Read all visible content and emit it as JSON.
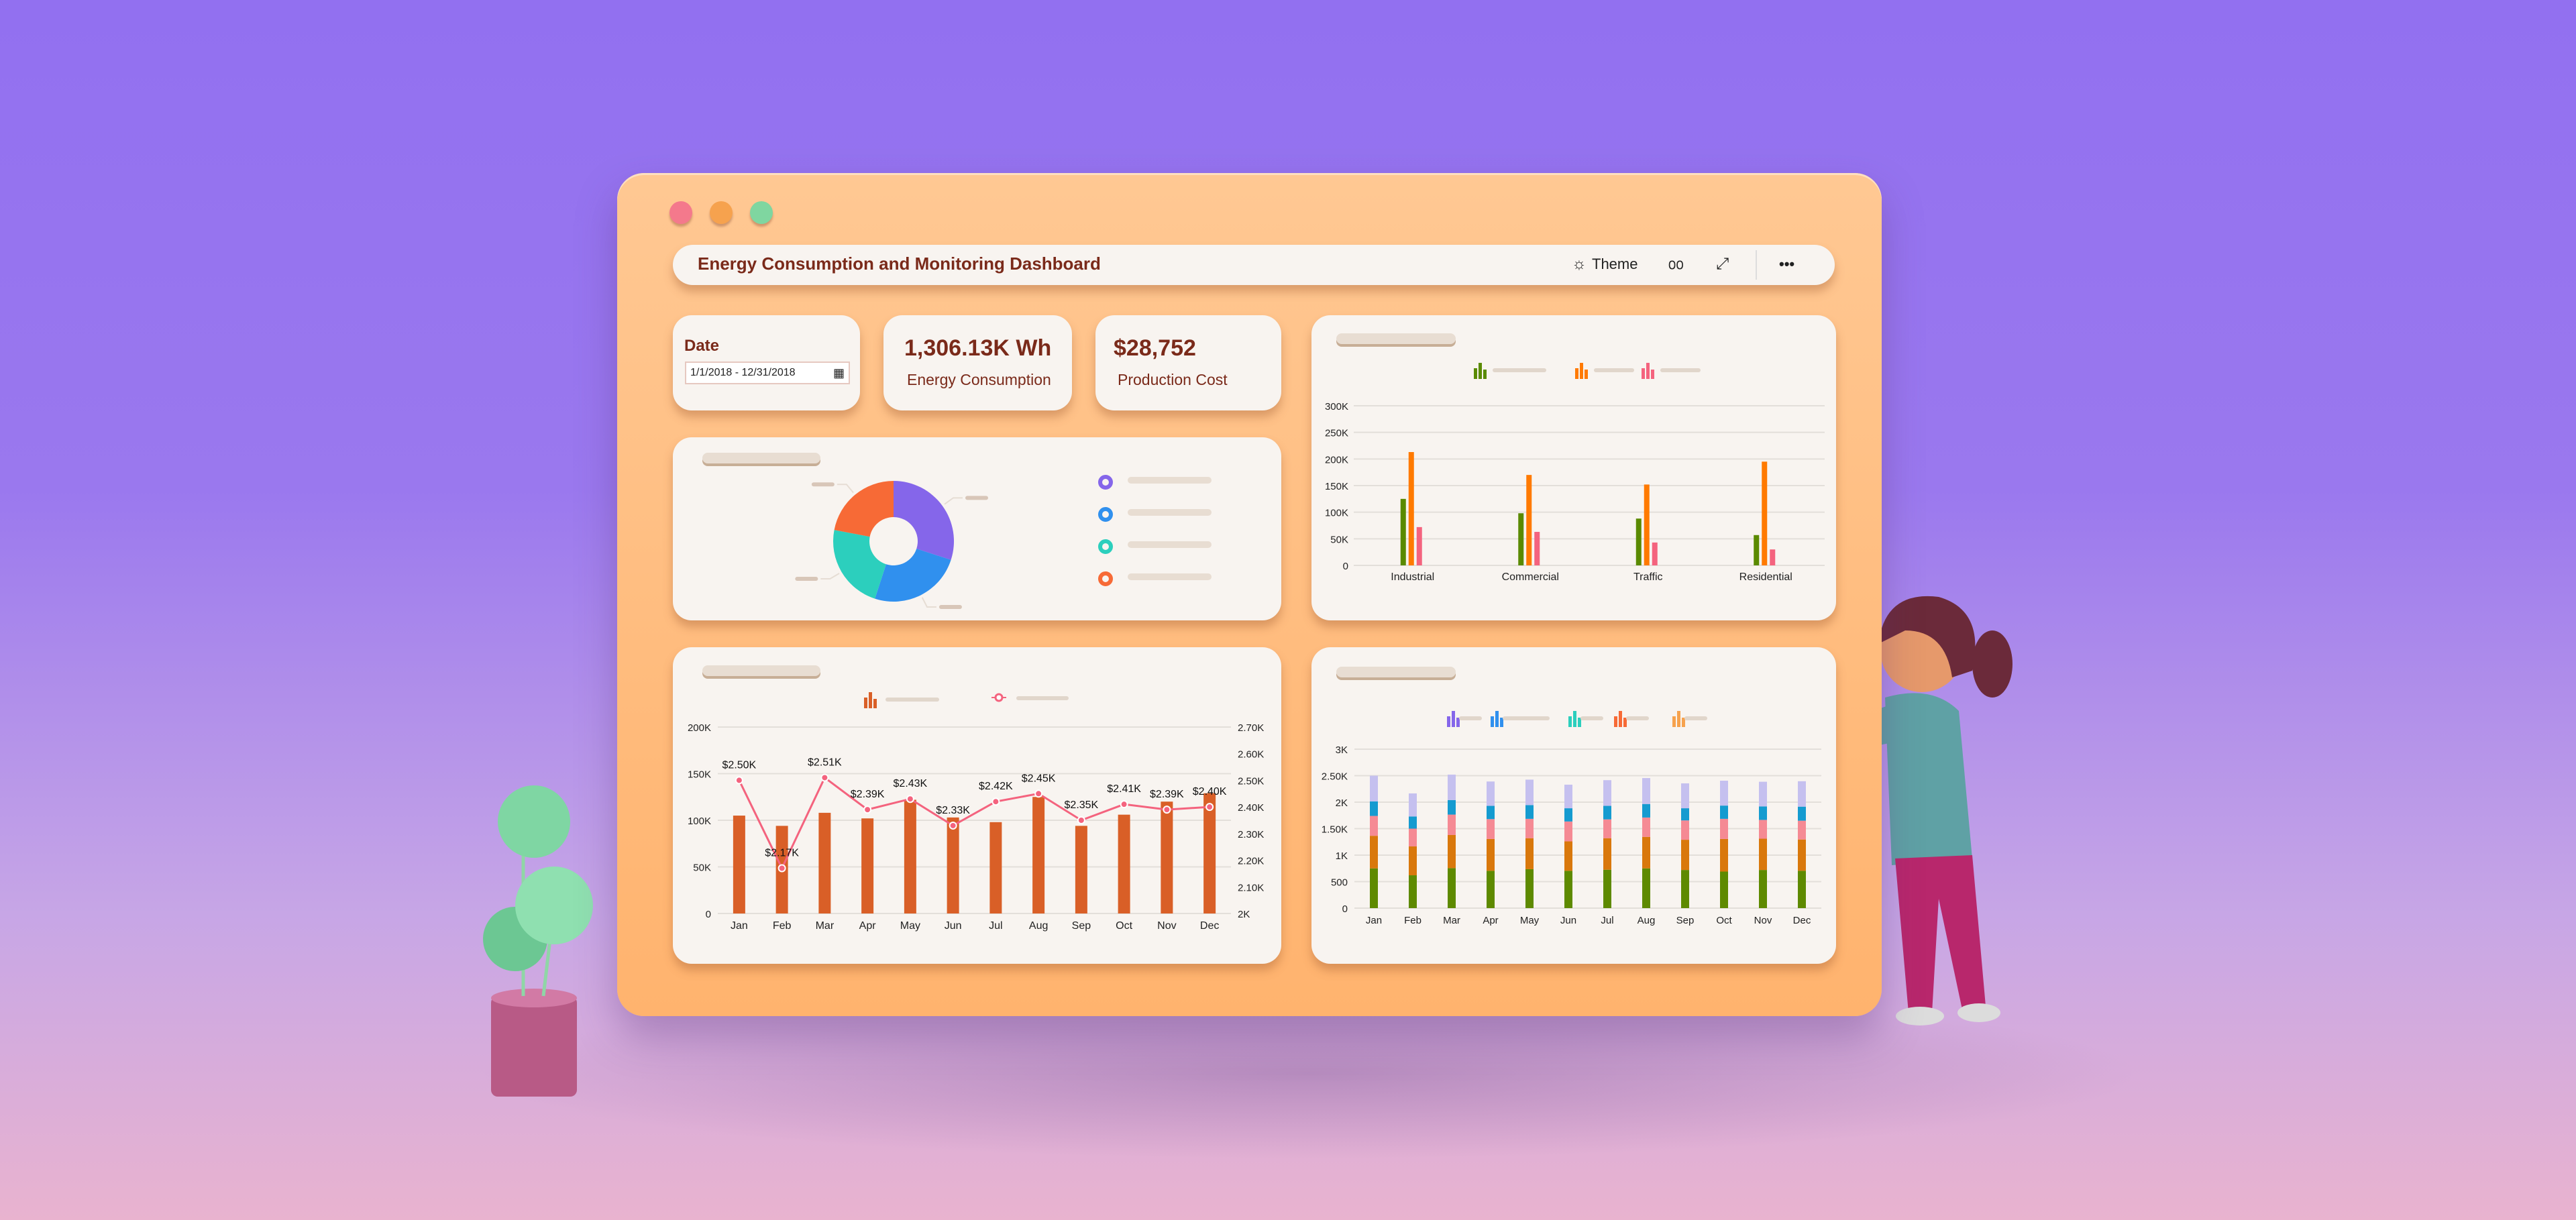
{
  "window": {
    "controls": [
      {
        "name": "close",
        "color": "#f4798c"
      },
      {
        "name": "minimize",
        "color": "#f6a24e"
      },
      {
        "name": "maximize",
        "color": "#7fd6a0"
      }
    ]
  },
  "header": {
    "title": "Energy Consumption and Monitoring Dashboard",
    "theme_label": "Theme",
    "icons": [
      "sun-icon",
      "glasses-icon",
      "expand-icon",
      "more-icon"
    ]
  },
  "date_card": {
    "label": "Date",
    "range": "1/1/2018 - 12/31/2018",
    "icon": "calendar-icon"
  },
  "kpis": [
    {
      "value": "1,306.13K Wh",
      "label": "Energy Consumption"
    },
    {
      "value": "$28,752",
      "label": "Production Cost"
    }
  ],
  "colors": {
    "accent": "#7a2a1a",
    "panel": "#f8f4f0",
    "window": "#ffb36e"
  },
  "chart_data": [
    {
      "type": "bar",
      "categories": [
        "Industrial",
        "Commercial",
        "Traffic",
        "Residential"
      ],
      "series": [
        {
          "color": "#5a8a00",
          "values": [
            125000,
            98000,
            88000,
            57000
          ]
        },
        {
          "color": "#ff7a00",
          "values": [
            213000,
            170000,
            152000,
            195000
          ]
        },
        {
          "color": "#f4637e",
          "values": [
            72000,
            63000,
            43000,
            30000
          ]
        }
      ],
      "ylim": [
        0,
        300000
      ],
      "yticks": [
        "0",
        "50K",
        "100K",
        "150K",
        "200K",
        "250K",
        "300K"
      ],
      "grid": true,
      "legend": "top"
    },
    {
      "type": "pie",
      "donut": true,
      "values": [
        30,
        25,
        23,
        22
      ],
      "colors": [
        "#8566ea",
        "#3090ee",
        "#2ccfbd",
        "#f76a36"
      ],
      "legend": "right"
    },
    {
      "type": "bar+line",
      "categories": [
        "Jan",
        "Feb",
        "Mar",
        "Apr",
        "May",
        "Jun",
        "Jul",
        "Aug",
        "Sep",
        "Oct",
        "Nov",
        "Dec"
      ],
      "bars": {
        "color": "#d95f27",
        "values": [
          105000,
          94000,
          108000,
          102000,
          122000,
          103000,
          98000,
          125000,
          94000,
          106000,
          120000,
          129000
        ],
        "ylim": [
          0,
          200000
        ],
        "yticks": [
          "0",
          "50K",
          "100K",
          "150K",
          "200K"
        ]
      },
      "line": {
        "color": "#f4637e",
        "values": [
          2500,
          2170,
          2510,
          2390,
          2430,
          2330,
          2420,
          2450,
          2350,
          2410,
          2390,
          2400
        ],
        "labels": [
          "$2.50K",
          "$2.17K",
          "$2.51K",
          "$2.39K",
          "$2.43K",
          "$2.33K",
          "$2.42K",
          "$2.45K",
          "$2.35K",
          "$2.41K",
          "$2.39K",
          "$2.40K"
        ],
        "ylim": [
          2000,
          2700
        ],
        "yticks": [
          "2K",
          "2.10K",
          "2.20K",
          "2.30K",
          "2.40K",
          "2.50K",
          "2.60K",
          "2.70K"
        ]
      },
      "grid": true,
      "legend": "top"
    },
    {
      "type": "stacked-bar",
      "categories": [
        "Jan",
        "Feb",
        "Mar",
        "Apr",
        "May",
        "Jun",
        "Jul",
        "Aug",
        "Sep",
        "Oct",
        "Nov",
        "Dec"
      ],
      "series": [
        {
          "color": "#5e8a00",
          "values": [
            750,
            620,
            755,
            705,
            735,
            705,
            725,
            750,
            720,
            690,
            720,
            705
          ]
        },
        {
          "color": "#d9780c",
          "values": [
            615,
            545,
            625,
            600,
            585,
            555,
            595,
            595,
            570,
            615,
            590,
            590
          ]
        },
        {
          "color": "#f58a94",
          "values": [
            375,
            335,
            385,
            375,
            365,
            375,
            355,
            365,
            365,
            380,
            355,
            355
          ]
        },
        {
          "color": "#159bd0",
          "values": [
            275,
            230,
            275,
            250,
            260,
            250,
            255,
            255,
            230,
            250,
            255,
            265
          ]
        },
        {
          "color": "#c5c0ef",
          "values": [
            485,
            435,
            480,
            460,
            480,
            445,
            485,
            490,
            470,
            470,
            465,
            480
          ]
        }
      ],
      "legend_colors": [
        "#8566ea",
        "#3090ee",
        "#2ccfbd",
        "#f76a36",
        "#f6a24e"
      ],
      "ylim": [
        0,
        3000
      ],
      "yticks": [
        "0",
        "500",
        "1K",
        "1.50K",
        "2K",
        "2.50K",
        "3K"
      ],
      "grid": true,
      "legend": "top"
    }
  ]
}
